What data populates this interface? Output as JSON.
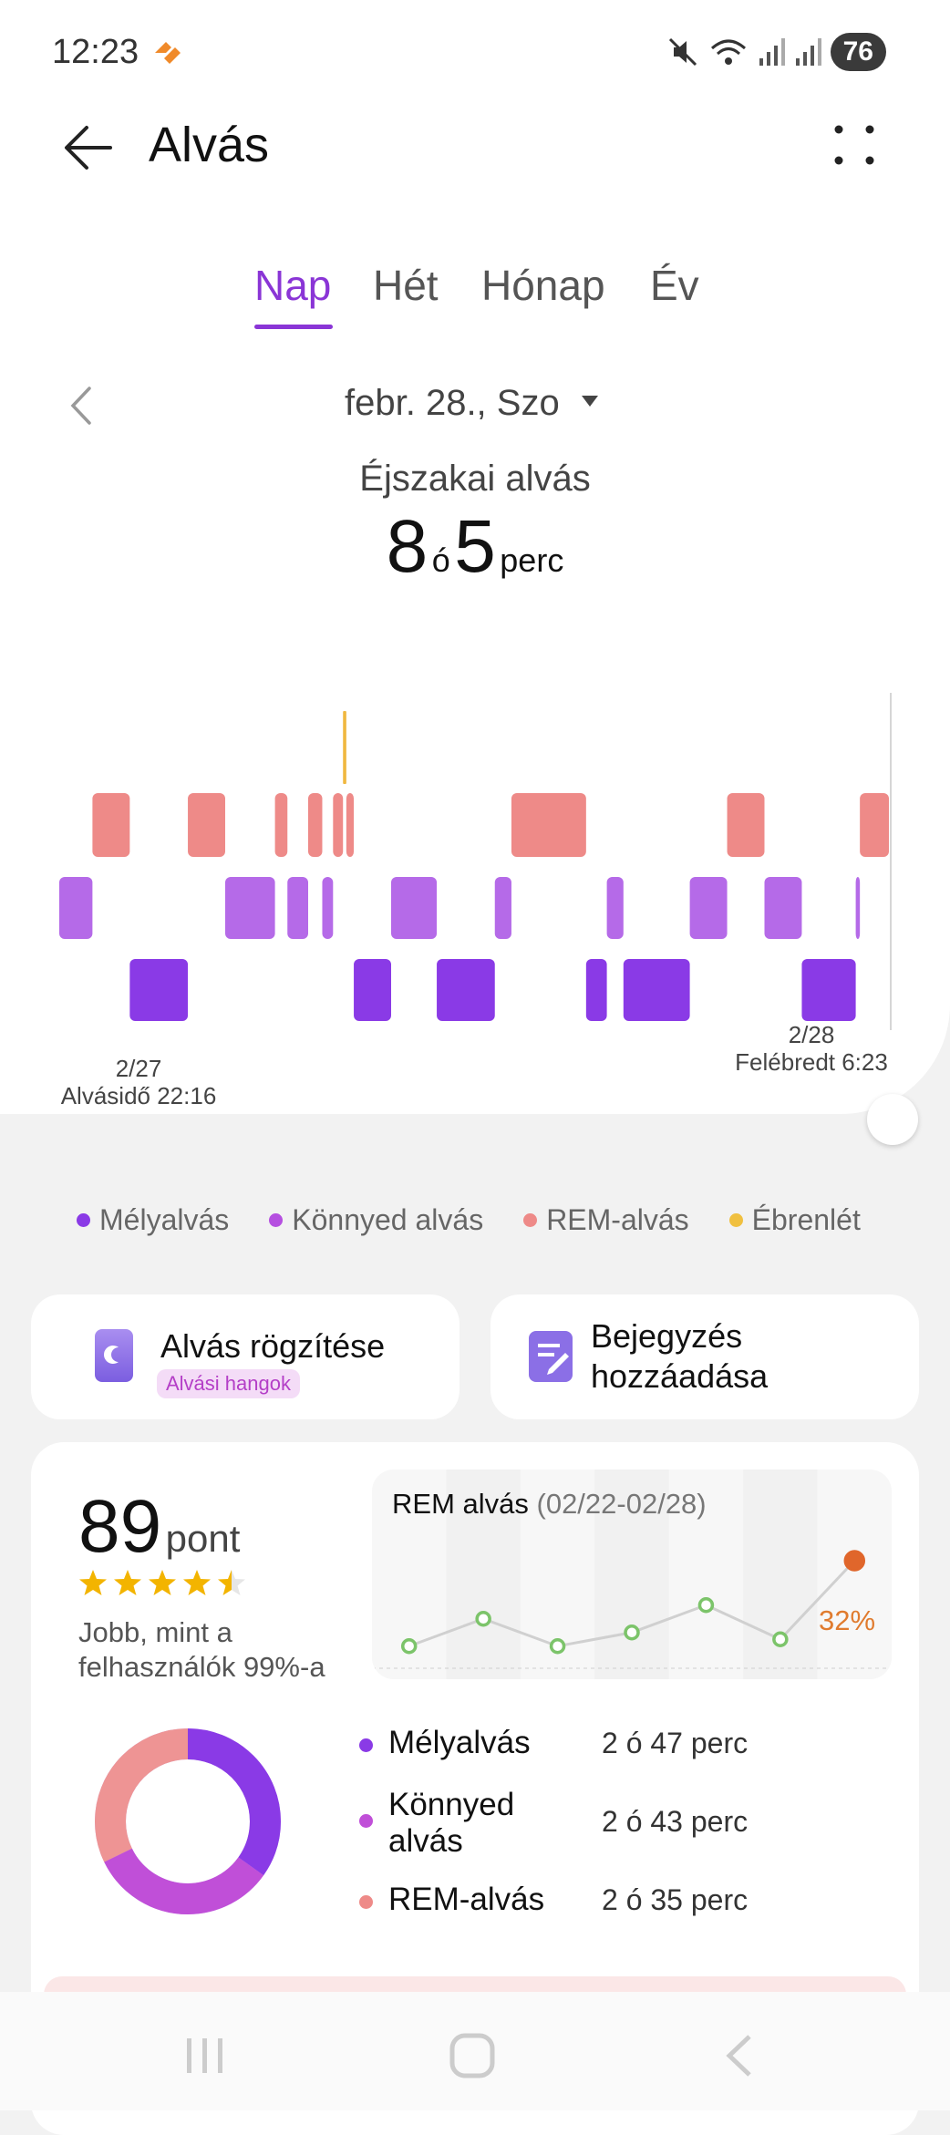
{
  "status_bar": {
    "time": "12:23",
    "battery": "76"
  },
  "header": {
    "title": "Alvás"
  },
  "tabs": [
    {
      "label": "Nap",
      "active": true
    },
    {
      "label": "Hét",
      "active": false
    },
    {
      "label": "Hónap",
      "active": false
    },
    {
      "label": "Év",
      "active": false
    }
  ],
  "date_nav": {
    "date": "febr. 28., Szo"
  },
  "summary": {
    "title": "Éjszakai alvás",
    "hours": "8",
    "hours_unit": "ó",
    "minutes": "5",
    "minutes_unit": "perc"
  },
  "hypnogram": {
    "start_date": "2/27",
    "start_label": "Alvásidő 22:16",
    "end_date": "2/28",
    "end_label": "Felébredt 6:23",
    "stage_colors": {
      "deep": "#8a3ae6",
      "light": "#b56ae8",
      "rem": "#ee8a88",
      "awake": "#f0b840"
    },
    "segments": [
      [
        "light",
        0.0,
        4.0
      ],
      [
        "rem",
        4.0,
        8.5
      ],
      [
        "deep",
        8.5,
        15.5
      ],
      [
        "rem",
        15.5,
        20.0
      ],
      [
        "light",
        20.0,
        26.0
      ],
      [
        "rem",
        26.0,
        27.5
      ],
      [
        "light",
        27.5,
        30.0
      ],
      [
        "rem",
        30.0,
        31.7
      ],
      [
        "light",
        31.7,
        33.0
      ],
      [
        "rem",
        33.0,
        34.2
      ],
      [
        "awake",
        34.2,
        34.6
      ],
      [
        "rem",
        34.6,
        35.5
      ],
      [
        "deep",
        35.5,
        40.0
      ],
      [
        "light",
        40.0,
        45.5
      ],
      [
        "deep",
        45.5,
        52.5
      ],
      [
        "light",
        52.5,
        54.5
      ],
      [
        "rem",
        54.5,
        63.5
      ],
      [
        "deep",
        63.5,
        66.0
      ],
      [
        "light",
        66.0,
        68.0
      ],
      [
        "deep",
        68.0,
        76.0
      ],
      [
        "light",
        76.0,
        80.5
      ],
      [
        "rem",
        80.5,
        85.0
      ],
      [
        "light",
        85.0,
        89.5
      ],
      [
        "deep",
        89.5,
        96.0
      ],
      [
        "light",
        96.0,
        96.5
      ],
      [
        "rem",
        96.5,
        100.0
      ]
    ]
  },
  "legend": [
    {
      "label": "Mélyalvás",
      "color": "#8a3ae6"
    },
    {
      "label": "Könnyed alvás",
      "color": "#b54fe0"
    },
    {
      "label": "REM-alvás",
      "color": "#ee8a88"
    },
    {
      "label": "Ébrenlét",
      "color": "#f0c040"
    }
  ],
  "actions": {
    "record_title": "Alvás rögzítése",
    "record_badge": "Alvási hangok",
    "note_title": "Bejegyzés hozzáadása"
  },
  "score": {
    "value": "89",
    "unit": "pont",
    "stars": 4.5,
    "comparison": "Jobb, mint a felhasználók 99%-a"
  },
  "rem_trend": {
    "title": "REM alvás",
    "range": "(02/22-02/28)",
    "values": [
      7,
      15,
      7,
      11,
      19,
      9,
      32
    ],
    "last_label": "32%",
    "ylim": [
      0,
      40
    ]
  },
  "breakdown": [
    {
      "name": "Mélyalvás",
      "value": "2 ó 47 perc",
      "color": "#8a3ae6"
    },
    {
      "name": "Könnyed alvás",
      "value": "2 ó 43 perc",
      "color": "#c04fd8"
    },
    {
      "name": "REM-alvás",
      "value": "2 ó 35 perc",
      "color": "#ee8a88"
    }
  ]
}
